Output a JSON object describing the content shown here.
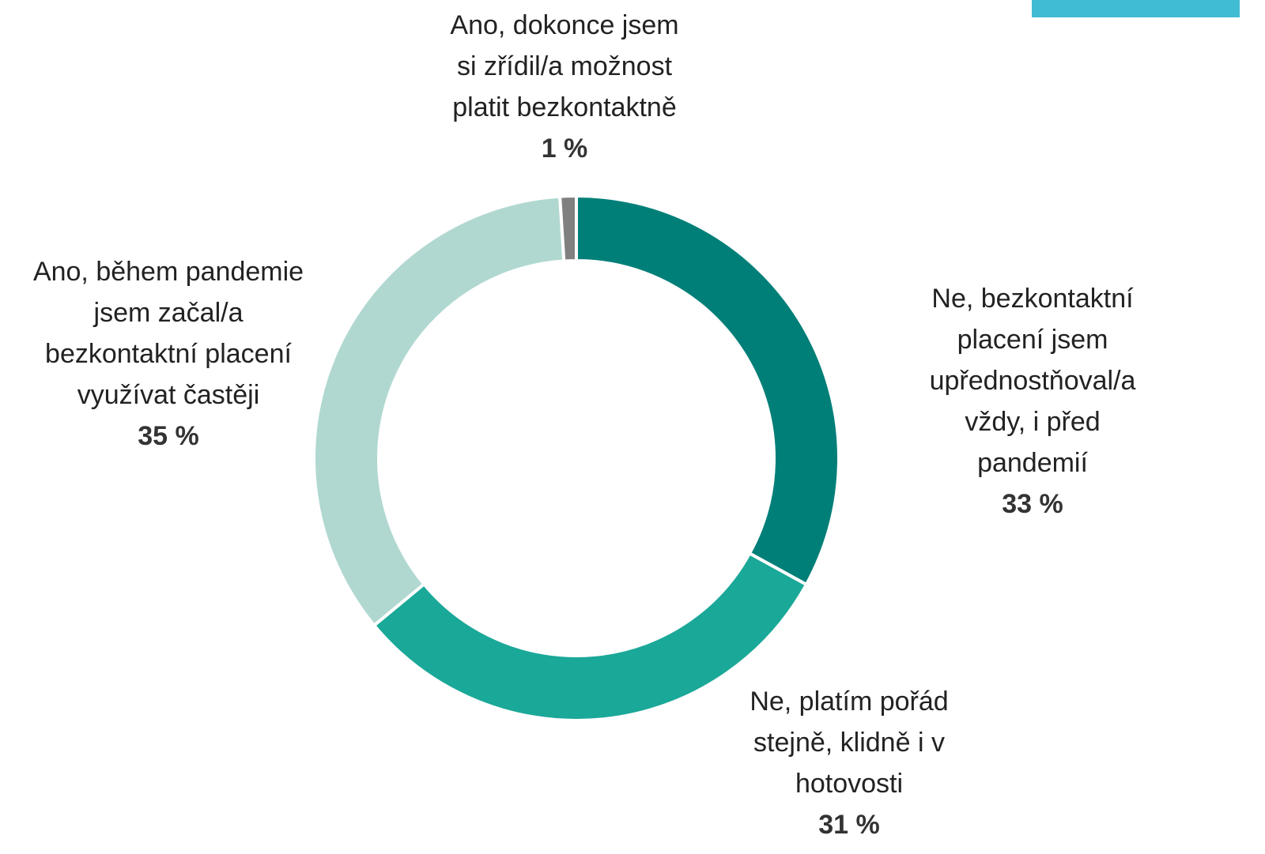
{
  "chart_data": {
    "type": "donut",
    "categories": [
      "Ne, bezkontaktní placení jsem\nupřednostňoval/a vždy, i před\npandemií",
      "Ne, platím pořád\nstejně, klidně i v\nhotovosti",
      "Ano, během pandemie\njsem začal/a\nbezkontaktní placení\nvyužívat častěji",
      "Ano, dokonce jsem\nsi zřídil/a možnost\nplatit bezkontaktně"
    ],
    "values": [
      33,
      31,
      35,
      1
    ],
    "value_labels": [
      "33 %",
      "31 %",
      "35 %",
      "1 %"
    ],
    "colors": [
      "#007f78",
      "#1aa898",
      "#b0d8d1",
      "#808080"
    ]
  }
}
